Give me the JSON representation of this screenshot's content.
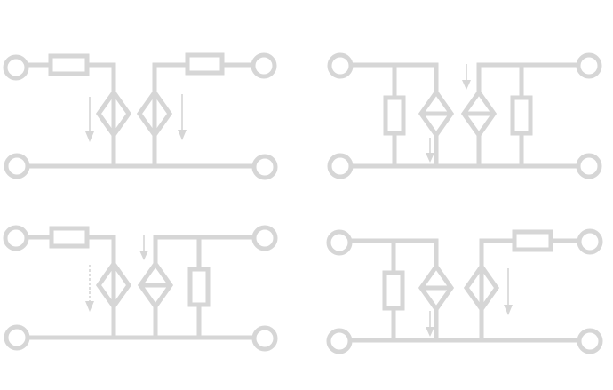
{
  "diagram": {
    "line_color": "#d6d6d6",
    "background": "#ffffff",
    "circuits": [
      {
        "name": "circuit-top-left",
        "series_left": true,
        "series_right": true,
        "shunt_left": false,
        "shunt_right": false
      },
      {
        "name": "circuit-top-right",
        "series_left": false,
        "series_right": false,
        "shunt_left": true,
        "shunt_right": true
      },
      {
        "name": "circuit-bottom-left",
        "series_left": true,
        "series_right": false,
        "shunt_left": false,
        "shunt_right": true
      },
      {
        "name": "circuit-bottom-right",
        "series_left": false,
        "series_right": true,
        "shunt_left": true,
        "shunt_right": false
      }
    ]
  }
}
